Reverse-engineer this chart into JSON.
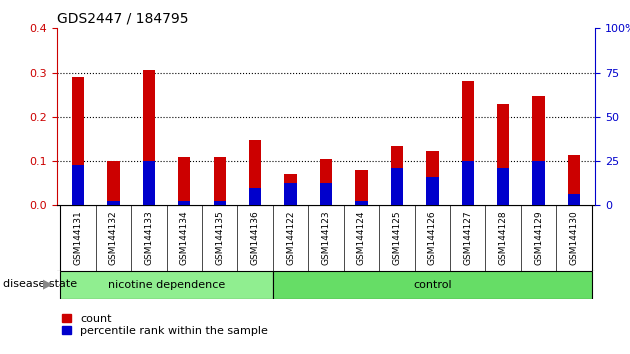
{
  "title": "GDS2447 / 184795",
  "categories": [
    "GSM144131",
    "GSM144132",
    "GSM144133",
    "GSM144134",
    "GSM144135",
    "GSM144136",
    "GSM144122",
    "GSM144123",
    "GSM144124",
    "GSM144125",
    "GSM144126",
    "GSM144127",
    "GSM144128",
    "GSM144129",
    "GSM144130"
  ],
  "count_values": [
    0.29,
    0.1,
    0.305,
    0.11,
    0.11,
    0.148,
    0.071,
    0.105,
    0.079,
    0.134,
    0.122,
    0.282,
    0.228,
    0.248,
    0.114
  ],
  "percentile_values": [
    0.09,
    0.01,
    0.1,
    0.01,
    0.01,
    0.04,
    0.05,
    0.05,
    0.01,
    0.085,
    0.065,
    0.1,
    0.085,
    0.1,
    0.025
  ],
  "group1_label": "nicotine dependence",
  "group1_count": 6,
  "group2_label": "control",
  "group2_count": 9,
  "group_label_prefix": "disease state",
  "ylim_left": [
    0,
    0.4
  ],
  "ylim_right": [
    0,
    100
  ],
  "yticks_left": [
    0,
    0.1,
    0.2,
    0.3,
    0.4
  ],
  "yticks_right": [
    0,
    25,
    50,
    75,
    100
  ],
  "bar_color": "#cc0000",
  "percentile_color": "#0000cc",
  "grid_color": "#000000",
  "plot_bg_color": "#ffffff",
  "xtick_bg_color": "#d3d3d3",
  "group1_color": "#90ee90",
  "group2_color": "#66dd66",
  "legend_count_label": "count",
  "legend_percentile_label": "percentile rank within the sample",
  "bar_width": 0.35,
  "left_yaxis_color": "#cc0000",
  "right_yaxis_color": "#0000cc"
}
